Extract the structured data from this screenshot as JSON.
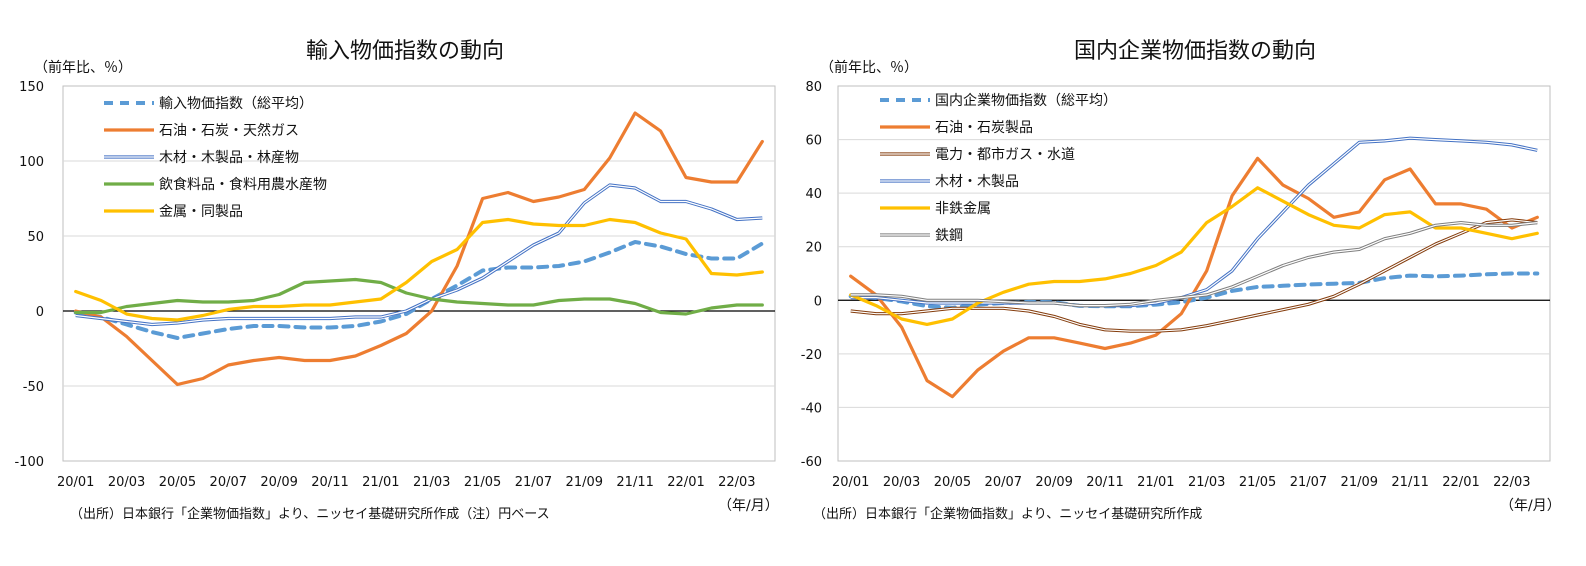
{
  "chart_data": [
    {
      "type": "line",
      "title": "輸入物価指数の動向",
      "ylabel": "（前年比、％）",
      "xunit": "（年/月）",
      "note": "（出所）日本銀行「企業物価指数」より、ニッセイ基礎研究所作成（注）円ベース",
      "ylim": [
        -100,
        150
      ],
      "yticks": [
        150,
        100,
        50,
        0,
        -50,
        -100
      ],
      "ytick_labels": [
        "150",
        "100",
        "50",
        "0",
        "-50",
        "-100"
      ],
      "xtick_labels": [
        "20/01",
        "20/03",
        "20/05",
        "20/07",
        "20/09",
        "20/11",
        "21/01",
        "21/03",
        "21/05",
        "21/07",
        "21/09",
        "21/11",
        "22/01",
        "22/03"
      ],
      "n_points": 28,
      "series": [
        {
          "name": "輸入物価指数（総平均）",
          "color": "#5b9bd5",
          "dashed": true,
          "values": [
            -1,
            -4,
            -9,
            -14,
            -18,
            -15,
            -12,
            -10,
            -10,
            -11,
            -11,
            -10,
            -7,
            -2,
            8,
            17,
            27,
            29,
            29,
            30,
            33,
            39,
            46,
            43,
            38,
            35,
            35,
            45
          ]
        },
        {
          "name": "石油・石炭・天然ガス",
          "color": "#ed7d31",
          "dashed": false,
          "values": [
            0,
            -4,
            -17,
            -33,
            -49,
            -45,
            -36,
            -33,
            -31,
            -33,
            -33,
            -30,
            -23,
            -15,
            0,
            30,
            75,
            79,
            73,
            76,
            81,
            102,
            132,
            120,
            89,
            86,
            86,
            113
          ]
        },
        {
          "name": "木材・木製品・林産物",
          "color": "#4472c4",
          "dashed": false,
          "values": [
            -3,
            -5,
            -7,
            -9,
            -8,
            -6,
            -5,
            -5,
            -5,
            -5,
            -5,
            -4,
            -4,
            0,
            8,
            14,
            22,
            33,
            44,
            52,
            72,
            84,
            82,
            73,
            73,
            68,
            61,
            62
          ]
        },
        {
          "name": "飲食料品・食料用農水産物",
          "color": "#70ad47",
          "dashed": false,
          "values": [
            -1,
            -1,
            3,
            5,
            7,
            6,
            6,
            7,
            11,
            19,
            20,
            21,
            19,
            12,
            8,
            6,
            5,
            4,
            4,
            7,
            8,
            8,
            5,
            -1,
            -2,
            2,
            4,
            4
          ]
        },
        {
          "name": "金属・同製品",
          "color": "#ffc000",
          "dashed": false,
          "values": [
            13,
            7,
            -2,
            -5,
            -6,
            -3,
            1,
            3,
            3,
            4,
            4,
            6,
            8,
            19,
            33,
            41,
            59,
            61,
            58,
            57,
            57,
            61,
            59,
            52,
            48,
            25,
            24,
            26
          ]
        }
      ]
    },
    {
      "type": "line",
      "title": "国内企業物価指数の動向",
      "ylabel": "（前年比、％）",
      "xunit": "（年/月）",
      "note": "（出所）日本銀行「企業物価指数」より、ニッセイ基礎研究所作成",
      "ylim": [
        -60,
        80
      ],
      "yticks": [
        80,
        60,
        40,
        20,
        0,
        -20,
        -40,
        -60
      ],
      "ytick_labels": [
        "80",
        "60",
        "40",
        "20",
        "0",
        "-20",
        "-40",
        "-60"
      ],
      "xtick_labels": [
        "20/01",
        "20/03",
        "20/05",
        "20/07",
        "20/09",
        "20/11",
        "21/01",
        "21/03",
        "21/05",
        "21/07",
        "21/09",
        "21/11",
        "22/01",
        "22/03"
      ],
      "n_points": 28,
      "series": [
        {
          "name": "国内企業物価指数（総平均）",
          "color": "#5b9bd5",
          "dashed": true,
          "values": [
            1.5,
            0.9,
            -0.4,
            -2.2,
            -2.8,
            -1.6,
            -1.0,
            -0.6,
            -0.7,
            -2.1,
            -2.2,
            -2.2,
            -1.6,
            -0.7,
            1.0,
            3.5,
            5.0,
            5.4,
            5.9,
            6.2,
            6.5,
            8.3,
            9.2,
            8.9,
            9.2,
            9.7,
            10.0,
            10.0
          ]
        },
        {
          "name": "石油・石炭製品",
          "color": "#ed7d31",
          "dashed": false,
          "values": [
            9,
            2,
            -10,
            -30,
            -36,
            -26,
            -19,
            -14,
            -14,
            -16,
            -18,
            -16,
            -13,
            -5,
            11,
            39,
            53,
            43,
            38,
            31,
            33,
            45,
            49,
            36,
            36,
            34,
            27,
            31
          ]
        },
        {
          "name": "電力・都市ガス・水道",
          "color": "#843c0c",
          "dashed": false,
          "values": [
            -4,
            -5,
            -5,
            -4,
            -3,
            -3,
            -3,
            -4,
            -6,
            -9,
            -11,
            -11.5,
            -11.5,
            -11,
            -9.5,
            -7.5,
            -5.5,
            -3.5,
            -1.5,
            1.5,
            6,
            11,
            16,
            21,
            25,
            29,
            30,
            29
          ]
        },
        {
          "name": "木材・木製品",
          "color": "#4472c4",
          "dashed": false,
          "values": [
            1,
            1,
            0,
            -1,
            -1,
            -1,
            -1,
            -1,
            -1,
            -2,
            -2,
            -2,
            -1,
            1,
            4,
            11,
            23,
            33,
            43,
            51,
            59,
            59.5,
            60.5,
            60,
            59.5,
            59,
            58,
            56
          ]
        },
        {
          "name": "非鉄金属",
          "color": "#ffc000",
          "dashed": false,
          "values": [
            2,
            -2,
            -7,
            -9,
            -7,
            -1,
            3,
            6,
            7,
            7,
            8,
            10,
            13,
            18,
            29,
            35,
            42,
            37,
            32,
            28,
            27,
            32,
            33,
            27,
            27,
            25,
            23,
            25
          ]
        },
        {
          "name": "鉄鋼",
          "color": "#7f7f7f",
          "dashed": false,
          "values": [
            2,
            2,
            1.5,
            0,
            0,
            0,
            -0.5,
            -1,
            -1,
            -2,
            -2,
            -1.5,
            0,
            1,
            2,
            5,
            9,
            13,
            16,
            18,
            19,
            23,
            25,
            28,
            29,
            28,
            28,
            29
          ]
        }
      ]
    }
  ]
}
